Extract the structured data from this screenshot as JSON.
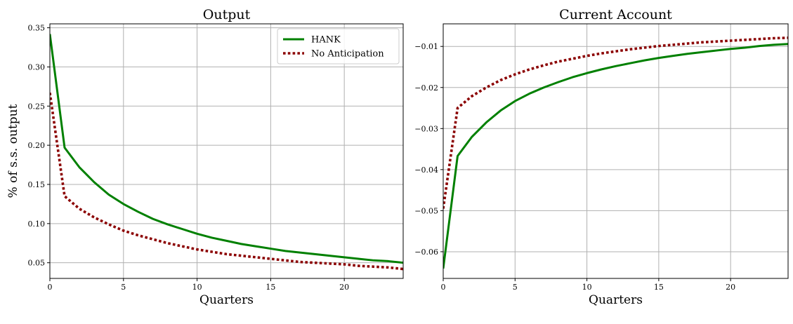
{
  "chart_data": [
    {
      "type": "line",
      "title": "Output",
      "xlabel": "Quarters",
      "ylabel": "% of s.s. output",
      "xlim": [
        0,
        24
      ],
      "ylim": [
        0.03,
        0.355
      ],
      "xticks": [
        0,
        5,
        10,
        15,
        20
      ],
      "xtick_labels": [
        "0",
        "5",
        "10",
        "15",
        "20"
      ],
      "yticks": [
        0.05,
        0.1,
        0.15,
        0.2,
        0.25,
        0.3,
        0.35
      ],
      "ytick_labels": [
        "0.05",
        "0.10",
        "0.15",
        "0.20",
        "0.25",
        "0.30",
        "0.35"
      ],
      "grid": true,
      "legend": "top-right",
      "x": [
        0,
        1,
        2,
        3,
        4,
        5,
        6,
        7,
        8,
        9,
        10,
        11,
        12,
        13,
        14,
        15,
        16,
        17,
        18,
        19,
        20,
        21,
        22,
        23,
        24
      ],
      "series": [
        {
          "name": "HANK",
          "color": "#008000",
          "style": "solid",
          "values": [
            0.342,
            0.197,
            0.172,
            0.153,
            0.137,
            0.125,
            0.115,
            0.106,
            0.099,
            0.093,
            0.087,
            0.082,
            0.078,
            0.074,
            0.071,
            0.068,
            0.065,
            0.063,
            0.061,
            0.059,
            0.057,
            0.055,
            0.053,
            0.052,
            0.05
          ]
        },
        {
          "name": "No Anticipation",
          "color": "#8b0000",
          "style": "dotted",
          "values": [
            0.267,
            0.135,
            0.119,
            0.108,
            0.099,
            0.091,
            0.085,
            0.08,
            0.075,
            0.071,
            0.067,
            0.064,
            0.061,
            0.059,
            0.057,
            0.055,
            0.053,
            0.051,
            0.05,
            0.049,
            0.048,
            0.046,
            0.045,
            0.044,
            0.042
          ]
        }
      ]
    },
    {
      "type": "line",
      "title": "Current Account",
      "xlabel": "Quarters",
      "ylabel": "",
      "xlim": [
        0,
        24
      ],
      "ylim": [
        -0.0665,
        -0.0045
      ],
      "xticks": [
        0,
        5,
        10,
        15,
        20
      ],
      "xtick_labels": [
        "0",
        "5",
        "10",
        "15",
        "20"
      ],
      "yticks": [
        -0.06,
        -0.05,
        -0.04,
        -0.03,
        -0.02,
        -0.01
      ],
      "ytick_labels": [
        "−0.06",
        "−0.05",
        "−0.04",
        "−0.03",
        "−0.02",
        "−0.01"
      ],
      "grid": true,
      "x": [
        0,
        1,
        2,
        3,
        4,
        5,
        6,
        7,
        8,
        9,
        10,
        11,
        12,
        13,
        14,
        15,
        16,
        17,
        18,
        19,
        20,
        21,
        22,
        23,
        24
      ],
      "series": [
        {
          "name": "HANK",
          "color": "#008000",
          "style": "solid",
          "values": [
            -0.0641,
            -0.0367,
            -0.032,
            -0.0285,
            -0.0256,
            -0.0233,
            -0.0215,
            -0.02,
            -0.0187,
            -0.0175,
            -0.0165,
            -0.0156,
            -0.0148,
            -0.0141,
            -0.0134,
            -0.0128,
            -0.0123,
            -0.0118,
            -0.0114,
            -0.011,
            -0.0106,
            -0.0103,
            -0.0099,
            -0.0096,
            -0.0094
          ]
        },
        {
          "name": "No Anticipation",
          "color": "#8b0000",
          "style": "dotted",
          "values": [
            -0.0495,
            -0.025,
            -0.0221,
            -0.02,
            -0.0182,
            -0.0168,
            -0.0156,
            -0.0146,
            -0.0137,
            -0.013,
            -0.0123,
            -0.0117,
            -0.0112,
            -0.0107,
            -0.0103,
            -0.0099,
            -0.0096,
            -0.0093,
            -0.009,
            -0.0088,
            -0.0086,
            -0.0084,
            -0.0082,
            -0.008,
            -0.0079
          ]
        }
      ]
    }
  ]
}
